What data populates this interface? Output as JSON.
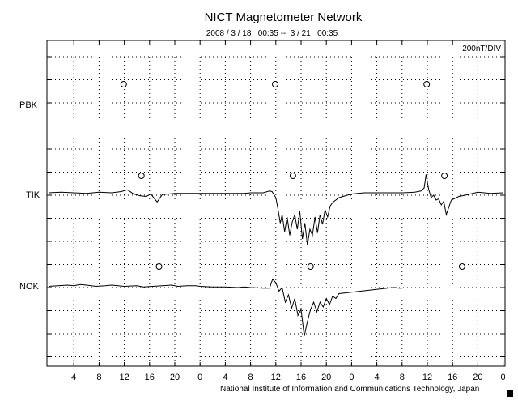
{
  "chart_data": {
    "type": "line",
    "title": "NICT Magnetometer Network",
    "subtitle": "2008 / 3 / 18   00:35 --  3 / 21   00:35",
    "scale_label": "200nT/DIV",
    "footer": "National Institute of Information and Communications Technology, Japan",
    "x_tick_labels": [
      "4",
      "8",
      "12",
      "16",
      "20",
      "0",
      "4",
      "8",
      "12",
      "16",
      "20",
      "0",
      "4",
      "8",
      "12",
      "16",
      "20",
      "0"
    ],
    "x_range_hours": [
      0,
      72
    ],
    "grid": true,
    "station_labels": [
      "PBK",
      "TIK",
      "NOK"
    ],
    "markers": [
      {
        "station": "PBK",
        "hours": [
          11.9,
          35.9,
          59.9
        ]
      },
      {
        "station": "TIK",
        "hours": [
          14.7,
          38.7,
          62.7
        ]
      },
      {
        "station": "NOK",
        "hours": [
          17.5,
          41.5,
          65.5
        ]
      }
    ],
    "series": [
      {
        "station": "TIK",
        "x": [
          0,
          2,
          4,
          6,
          8,
          10,
          11.5,
          12.5,
          13.5,
          14.5,
          15.5,
          16.2,
          16.8,
          17.2,
          18,
          20,
          24,
          28,
          30,
          31,
          32,
          34,
          35,
          35.4,
          36,
          36.3,
          36.7,
          37,
          37.4,
          37.8,
          38.2,
          38.6,
          39,
          39.4,
          39.8,
          40.2,
          40.6,
          41,
          41.4,
          41.8,
          42.2,
          42.6,
          43,
          43.4,
          43.8,
          44.2,
          44.6,
          45,
          46,
          48,
          50,
          54,
          56,
          58,
          59,
          59.5,
          59.8,
          60.2,
          60.6,
          61,
          61.4,
          61.8,
          62.2,
          62.6,
          63,
          63.4,
          63.8,
          64.2,
          65,
          66,
          68,
          70,
          72
        ],
        "y": [
          0,
          5,
          0,
          -5,
          5,
          0,
          10,
          25,
          -10,
          -25,
          -30,
          -10,
          -50,
          -75,
          -15,
          -5,
          -5,
          -5,
          -5,
          -5,
          0,
          0,
          15,
          10,
          -40,
          -120,
          -250,
          -180,
          -320,
          -200,
          -350,
          -240,
          -180,
          -300,
          -150,
          -380,
          -250,
          -430,
          -300,
          -350,
          -200,
          -330,
          -180,
          -260,
          -140,
          -200,
          -110,
          -80,
          -40,
          -10,
          0,
          0,
          0,
          5,
          15,
          40,
          150,
          30,
          -40,
          -20,
          -60,
          -50,
          -100,
          -70,
          -180,
          -120,
          -60,
          -50,
          -30,
          -20,
          5,
          -5,
          0
        ]
      },
      {
        "station": "NOK",
        "x": [
          0,
          1.5,
          3,
          4,
          5,
          6,
          7.5,
          9,
          10,
          12,
          14,
          15,
          16.5,
          18,
          19.5,
          20.5,
          22,
          23.3,
          24,
          26,
          28,
          30,
          31,
          32,
          34,
          35,
          35.5,
          36,
          36.5,
          37,
          37.5,
          38,
          38.5,
          39,
          39.5,
          40,
          40.5,
          41,
          41.5,
          42,
          42.5,
          43,
          43.5,
          44,
          44.5,
          45,
          45.5,
          46,
          54.5,
          55,
          55.5,
          56
        ],
        "y": [
          10,
          15,
          20,
          15,
          25,
          20,
          10,
          15,
          20,
          10,
          15,
          5,
          10,
          15,
          20,
          10,
          15,
          15,
          10,
          5,
          5,
          0,
          5,
          0,
          -5,
          -5,
          70,
          40,
          -30,
          0,
          -120,
          -60,
          -170,
          -90,
          -230,
          -180,
          -400,
          -280,
          -180,
          -120,
          -200,
          -120,
          -160,
          -90,
          -140,
          -70,
          -90,
          -50,
          0,
          0,
          -5,
          -5
        ]
      }
    ]
  }
}
